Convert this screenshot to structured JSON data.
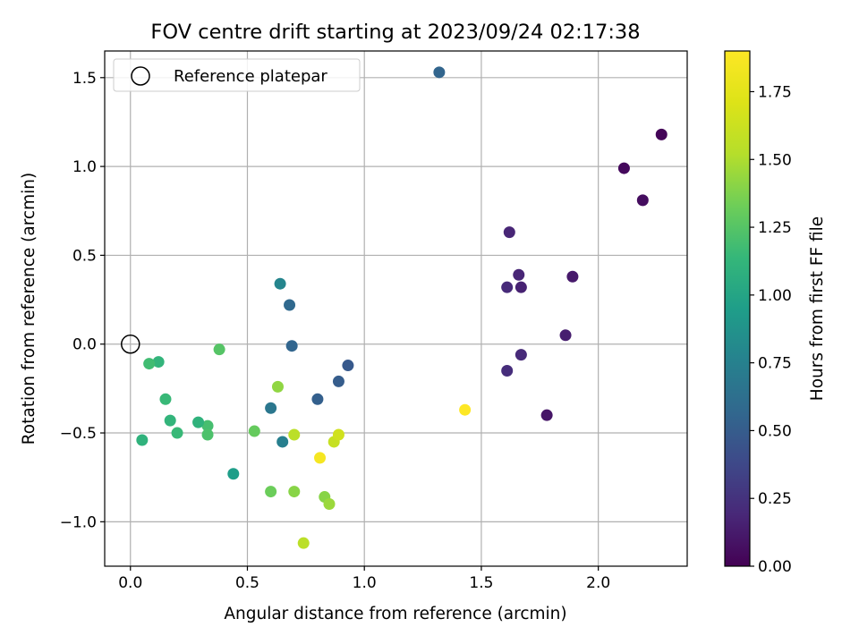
{
  "chart_data": {
    "type": "scatter",
    "title": "FOV centre drift starting at 2023/09/24 02:17:38",
    "xlabel": "Angular distance from reference (arcmin)",
    "ylabel": "Rotation from reference (arcmin)",
    "xlim": [
      -0.11,
      2.38
    ],
    "ylim": [
      -1.25,
      1.65
    ],
    "xticks": [
      0.0,
      0.5,
      1.0,
      1.5,
      2.0
    ],
    "xtick_labels": [
      "0.0",
      "0.5",
      "1.0",
      "1.5",
      "2.0"
    ],
    "yticks": [
      -1.0,
      -0.5,
      0.0,
      0.5,
      1.0,
      1.5
    ],
    "ytick_labels": [
      "−1.0",
      "−0.5",
      "0.0",
      "0.5",
      "1.0",
      "1.5"
    ],
    "grid": true,
    "legend": {
      "placement": "top-left",
      "entries": [
        "Reference platepar"
      ]
    },
    "reference_point": {
      "x": 0.0,
      "y": 0.0,
      "label": "Reference platepar"
    },
    "colorbar": {
      "label": "Hours from first FF file",
      "colormap": "viridis",
      "range": [
        0.0,
        1.9
      ],
      "ticks": [
        0.0,
        0.25,
        0.5,
        0.75,
        1.0,
        1.25,
        1.5,
        1.75
      ],
      "tick_labels": [
        "0.00",
        "0.25",
        "0.50",
        "0.75",
        "1.00",
        "1.25",
        "1.50",
        "1.75"
      ]
    },
    "points": [
      {
        "x": 2.27,
        "y": 1.18,
        "t": 0.02
      },
      {
        "x": 2.11,
        "y": 0.99,
        "t": 0.04
      },
      {
        "x": 2.19,
        "y": 0.81,
        "t": 0.06
      },
      {
        "x": 1.89,
        "y": 0.38,
        "t": 0.12
      },
      {
        "x": 1.86,
        "y": 0.05,
        "t": 0.14
      },
      {
        "x": 1.78,
        "y": -0.4,
        "t": 0.1
      },
      {
        "x": 1.67,
        "y": -0.06,
        "t": 0.2
      },
      {
        "x": 1.67,
        "y": 0.32,
        "t": 0.16
      },
      {
        "x": 1.66,
        "y": 0.39,
        "t": 0.18
      },
      {
        "x": 1.62,
        "y": 0.63,
        "t": 0.18
      },
      {
        "x": 1.61,
        "y": 0.32,
        "t": 0.2
      },
      {
        "x": 1.61,
        "y": -0.15,
        "t": 0.22
      },
      {
        "x": 1.32,
        "y": 1.53,
        "t": 0.55
      },
      {
        "x": 0.93,
        "y": -0.12,
        "t": 0.48
      },
      {
        "x": 0.89,
        "y": -0.21,
        "t": 0.5
      },
      {
        "x": 0.8,
        "y": -0.31,
        "t": 0.52
      },
      {
        "x": 0.69,
        "y": -0.01,
        "t": 0.56
      },
      {
        "x": 0.68,
        "y": 0.22,
        "t": 0.58
      },
      {
        "x": 0.64,
        "y": 0.34,
        "t": 0.78
      },
      {
        "x": 0.65,
        "y": -0.55,
        "t": 0.74
      },
      {
        "x": 0.6,
        "y": -0.36,
        "t": 0.68
      },
      {
        "x": 0.44,
        "y": -0.73,
        "t": 0.95
      },
      {
        "x": 0.38,
        "y": -0.03,
        "t": 1.25
      },
      {
        "x": 0.33,
        "y": -0.46,
        "t": 1.2
      },
      {
        "x": 0.33,
        "y": -0.51,
        "t": 1.22
      },
      {
        "x": 0.29,
        "y": -0.44,
        "t": 1.1
      },
      {
        "x": 0.2,
        "y": -0.5,
        "t": 1.15
      },
      {
        "x": 0.17,
        "y": -0.43,
        "t": 1.12
      },
      {
        "x": 0.15,
        "y": -0.31,
        "t": 1.15
      },
      {
        "x": 0.12,
        "y": -0.1,
        "t": 1.12
      },
      {
        "x": 0.08,
        "y": -0.11,
        "t": 1.18
      },
      {
        "x": 0.05,
        "y": -0.54,
        "t": 1.1
      },
      {
        "x": 0.53,
        "y": -0.49,
        "t": 1.3
      },
      {
        "x": 0.63,
        "y": -0.24,
        "t": 1.42
      },
      {
        "x": 0.6,
        "y": -0.83,
        "t": 1.32
      },
      {
        "x": 0.7,
        "y": -0.83,
        "t": 1.4
      },
      {
        "x": 0.7,
        "y": -0.51,
        "t": 1.55
      },
      {
        "x": 0.74,
        "y": -1.12,
        "t": 1.55
      },
      {
        "x": 0.81,
        "y": -0.64,
        "t": 1.85
      },
      {
        "x": 0.83,
        "y": -0.86,
        "t": 1.4
      },
      {
        "x": 0.85,
        "y": -0.9,
        "t": 1.45
      },
      {
        "x": 0.87,
        "y": -0.55,
        "t": 1.6
      },
      {
        "x": 0.89,
        "y": -0.51,
        "t": 1.65
      },
      {
        "x": 1.43,
        "y": -0.37,
        "t": 1.9
      }
    ]
  }
}
